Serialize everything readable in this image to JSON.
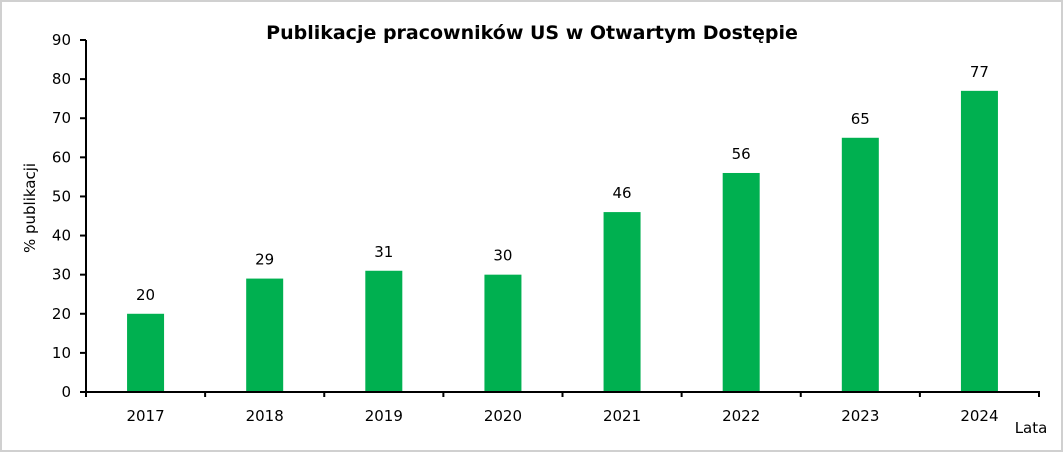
{
  "chart_data": {
    "type": "bar",
    "title": "Publikacje  pracowników US w Otwartym Dostępie",
    "xlabel": "Lata",
    "ylabel": "% publikacji",
    "categories": [
      "2017",
      "2018",
      "2019",
      "2020",
      "2021",
      "2022",
      "2023",
      "2024"
    ],
    "values": [
      20,
      29,
      31,
      30,
      46,
      56,
      65,
      77
    ],
    "ylim": [
      0,
      90
    ],
    "yticks": [
      0,
      10,
      20,
      30,
      40,
      50,
      60,
      70,
      80,
      90
    ],
    "grid": false,
    "legend": "none",
    "bar_color": "#00B050"
  }
}
